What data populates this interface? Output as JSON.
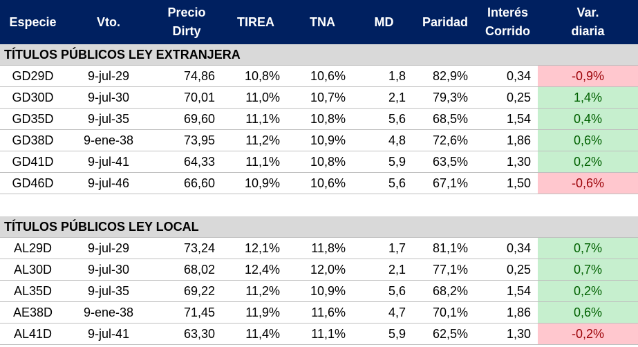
{
  "headers": [
    "Especie",
    "Vto.",
    "Precio Dirty",
    "TIREA",
    "TNA",
    "MD",
    "Paridad",
    "Interés Corrido",
    "Var. diaria"
  ],
  "header_lines": {
    "precio": [
      "Precio",
      "Dirty"
    ],
    "interes": [
      "Interés",
      "Corrido"
    ],
    "var": [
      "Var.",
      "diaria"
    ]
  },
  "sections": [
    {
      "title": "TÍTULOS PÚBLICOS LEY EXTRANJERA",
      "rows": [
        {
          "especie": "GD29D",
          "vto": "9-jul-29",
          "precio": "74,86",
          "tirea": "10,8%",
          "tna": "10,6%",
          "md": "1,8",
          "paridad": "82,9%",
          "interes": "0,34",
          "var": "-0,9%",
          "trend": "neg"
        },
        {
          "especie": "GD30D",
          "vto": "9-jul-30",
          "precio": "70,01",
          "tirea": "11,0%",
          "tna": "10,7%",
          "md": "2,1",
          "paridad": "79,3%",
          "interes": "0,25",
          "var": "1,4%",
          "trend": "pos"
        },
        {
          "especie": "GD35D",
          "vto": "9-jul-35",
          "precio": "69,60",
          "tirea": "11,1%",
          "tna": "10,8%",
          "md": "5,6",
          "paridad": "68,5%",
          "interes": "1,54",
          "var": "0,4%",
          "trend": "pos"
        },
        {
          "especie": "GD38D",
          "vto": "9-ene-38",
          "precio": "73,95",
          "tirea": "11,2%",
          "tna": "10,9%",
          "md": "4,8",
          "paridad": "72,6%",
          "interes": "1,86",
          "var": "0,6%",
          "trend": "pos"
        },
        {
          "especie": "GD41D",
          "vto": "9-jul-41",
          "precio": "64,33",
          "tirea": "11,1%",
          "tna": "10,8%",
          "md": "5,9",
          "paridad": "63,5%",
          "interes": "1,30",
          "var": "0,2%",
          "trend": "pos"
        },
        {
          "especie": "GD46D",
          "vto": "9-jul-46",
          "precio": "66,60",
          "tirea": "10,9%",
          "tna": "10,6%",
          "md": "5,6",
          "paridad": "67,1%",
          "interes": "1,50",
          "var": "-0,6%",
          "trend": "neg"
        }
      ]
    },
    {
      "title": "TÍTULOS PÚBLICOS LEY LOCAL",
      "rows": [
        {
          "especie": "AL29D",
          "vto": "9-jul-29",
          "precio": "73,24",
          "tirea": "12,1%",
          "tna": "11,8%",
          "md": "1,7",
          "paridad": "81,1%",
          "interes": "0,34",
          "var": "0,7%",
          "trend": "pos"
        },
        {
          "especie": "AL30D",
          "vto": "9-jul-30",
          "precio": "68,02",
          "tirea": "12,4%",
          "tna": "12,0%",
          "md": "2,1",
          "paridad": "77,1%",
          "interes": "0,25",
          "var": "0,7%",
          "trend": "pos"
        },
        {
          "especie": "AL35D",
          "vto": "9-jul-35",
          "precio": "69,22",
          "tirea": "11,2%",
          "tna": "10,9%",
          "md": "5,6",
          "paridad": "68,2%",
          "interes": "1,54",
          "var": "0,2%",
          "trend": "pos"
        },
        {
          "especie": "AE38D",
          "vto": "9-ene-38",
          "precio": "71,45",
          "tirea": "11,9%",
          "tna": "11,6%",
          "md": "4,7",
          "paridad": "70,1%",
          "interes": "1,86",
          "var": "0,6%",
          "trend": "pos"
        },
        {
          "especie": "AL41D",
          "vto": "9-jul-41",
          "precio": "63,30",
          "tirea": "11,4%",
          "tna": "11,1%",
          "md": "5,9",
          "paridad": "62,5%",
          "interes": "1,30",
          "var": "-0,2%",
          "trend": "neg"
        }
      ]
    }
  ],
  "colors": {
    "header_bg": "#002060",
    "section_bg": "#d9d9d9",
    "neg_bg": "#ffc7ce",
    "neg_fg": "#9c0006",
    "pos_bg": "#c6efce",
    "pos_fg": "#006100"
  }
}
